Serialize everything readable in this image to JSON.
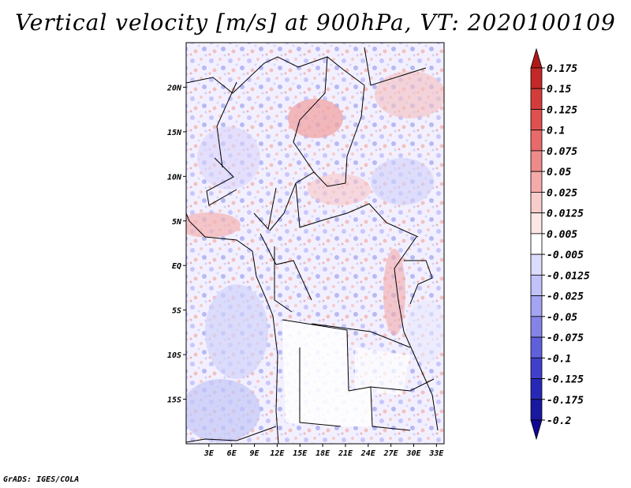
{
  "title": "Vertical velocity [m/s] at 900hPa, VT: 2020100109",
  "footer": "GrADS: IGES/COLA",
  "map": {
    "lon_range": [
      0,
      34
    ],
    "lat_range": [
      -20,
      25
    ],
    "lon_ticks": [
      "3E",
      "6E",
      "9E",
      "12E",
      "15E",
      "18E",
      "21E",
      "24E",
      "27E",
      "30E",
      "33E"
    ],
    "lon_tick_values": [
      3,
      6,
      9,
      12,
      15,
      18,
      21,
      24,
      27,
      30,
      33
    ],
    "lat_ticks": [
      "20N",
      "15N",
      "10N",
      "5N",
      "EQ",
      "5S",
      "10S",
      "15S"
    ],
    "lat_tick_values": [
      20,
      15,
      10,
      5,
      0,
      -5,
      -10,
      -15
    ]
  },
  "colorbar": {
    "labels": [
      "0.175",
      "0.15",
      "0.125",
      "0.1",
      "0.075",
      "0.05",
      "0.025",
      "0.0125",
      "0.005",
      "-0.005",
      "-0.0125",
      "-0.025",
      "-0.05",
      "-0.075",
      "-0.1",
      "-0.125",
      "-0.175",
      "-0.2"
    ],
    "colors": [
      "#b01818",
      "#c42828",
      "#d43c3c",
      "#e05050",
      "#e86a6a",
      "#ef8a8a",
      "#f5aaaa",
      "#f9cccc",
      "#fce6e6",
      "#ffffff",
      "#dcdcff",
      "#c2c2fa",
      "#a4a4f2",
      "#8484e8",
      "#6060dc",
      "#4040cc",
      "#2828b8",
      "#1818a0",
      "#100890"
    ]
  }
}
